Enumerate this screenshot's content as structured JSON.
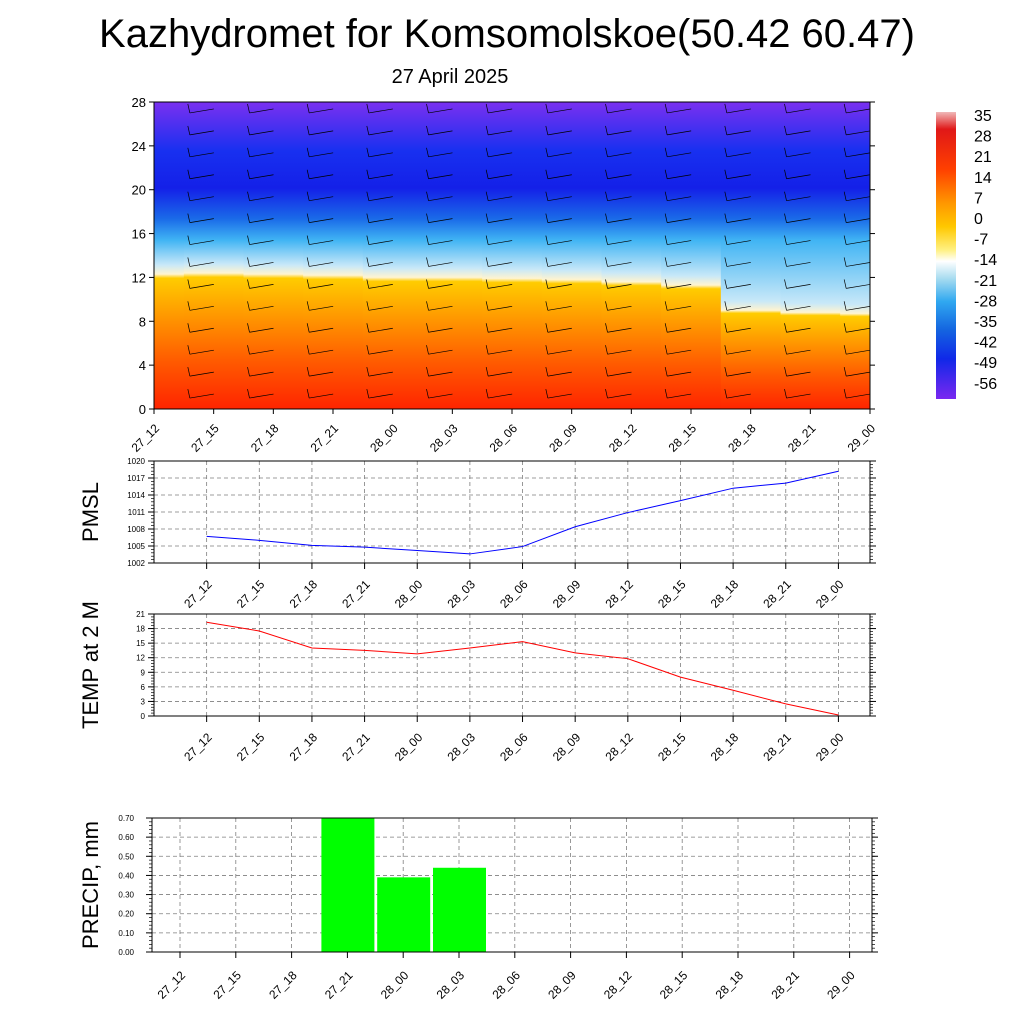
{
  "title": "Kazhydromet for Komsomolskoe(50.42 60.47)",
  "subtitle": "27 April 2025",
  "time_labels": [
    "27_12",
    "27_15",
    "27_18",
    "27_21",
    "28_00",
    "28_03",
    "28_06",
    "28_09",
    "28_12",
    "28_15",
    "28_18",
    "28_21",
    "29_00"
  ],
  "colors": {
    "pressure_line": "#0000ff",
    "temp_line": "#ff0000",
    "precip_bar": "#00ff00",
    "grid": "#7f7f7f"
  },
  "chart_data": [
    {
      "type": "heatmap",
      "name": "cross-section",
      "x": [
        "27_12",
        "27_15",
        "27_18",
        "27_21",
        "28_00",
        "28_03",
        "28_06",
        "28_09",
        "28_12",
        "28_15",
        "28_18",
        "28_21",
        "29_00"
      ],
      "ylim": [
        0,
        28
      ],
      "yticks": [
        0,
        4,
        8,
        12,
        16,
        20,
        24,
        28
      ],
      "colorbar": {
        "labels": [
          "35",
          "28",
          "21",
          "14",
          "7",
          "0",
          "-7",
          "-14",
          "-21",
          "-28",
          "-35",
          "-42",
          "-49",
          "-56"
        ],
        "range": [
          -60,
          36
        ]
      },
      "freezing_level": [
        12.3,
        12.4,
        12.3,
        12.2,
        12.0,
        12.0,
        11.9,
        11.8,
        11.6,
        11.3,
        9.0,
        8.8,
        8.7
      ],
      "wind_barbs": "shown"
    },
    {
      "type": "line",
      "name": "pressure",
      "ylabel": "PMSL",
      "x": [
        "27_12",
        "27_15",
        "27_18",
        "27_21",
        "28_00",
        "28_03",
        "28_06",
        "28_09",
        "28_12",
        "28_15",
        "28_18",
        "28_21",
        "29_00"
      ],
      "values": [
        1006.7,
        1006.0,
        1005.1,
        1004.8,
        1004.2,
        1003.6,
        1004.9,
        1008.4,
        1010.9,
        1013.0,
        1015.2,
        1016.1,
        1018.2
      ],
      "ylim": [
        1002,
        1020
      ],
      "yticks": [
        "1002",
        "1005",
        "1008",
        "1011",
        "1014",
        "1017",
        "1020"
      ],
      "grid": true
    },
    {
      "type": "line",
      "name": "temperature",
      "ylabel": "TEMP at 2 M",
      "x": [
        "27_12",
        "27_15",
        "27_18",
        "27_21",
        "28_00",
        "28_03",
        "28_06",
        "28_09",
        "28_12",
        "28_15",
        "28_18",
        "28_21",
        "29_00"
      ],
      "values": [
        19.3,
        17.5,
        14.0,
        13.5,
        12.8,
        14.0,
        15.3,
        13.0,
        11.8,
        8.0,
        5.3,
        2.5,
        0.2
      ],
      "ylim": [
        0,
        21
      ],
      "yticks": [
        "0",
        "3",
        "6",
        "9",
        "12",
        "15",
        "18",
        "21"
      ],
      "grid": true
    },
    {
      "type": "bar",
      "name": "precipitation",
      "ylabel": "PRECIP, mm",
      "categories": [
        "27_12",
        "27_15",
        "27_18",
        "27_21",
        "28_00",
        "28_03",
        "28_06",
        "28_09",
        "28_12",
        "28_15",
        "28_18",
        "28_21",
        "29_00"
      ],
      "values": [
        0,
        0,
        0,
        0.7,
        0.39,
        0.44,
        0,
        0,
        0,
        0,
        0,
        0,
        0
      ],
      "ylim": [
        0,
        0.7
      ],
      "yticks": [
        "0.00",
        "0.10",
        "0.20",
        "0.30",
        "0.40",
        "0.50",
        "0.60",
        "0.70"
      ],
      "grid": true
    }
  ]
}
